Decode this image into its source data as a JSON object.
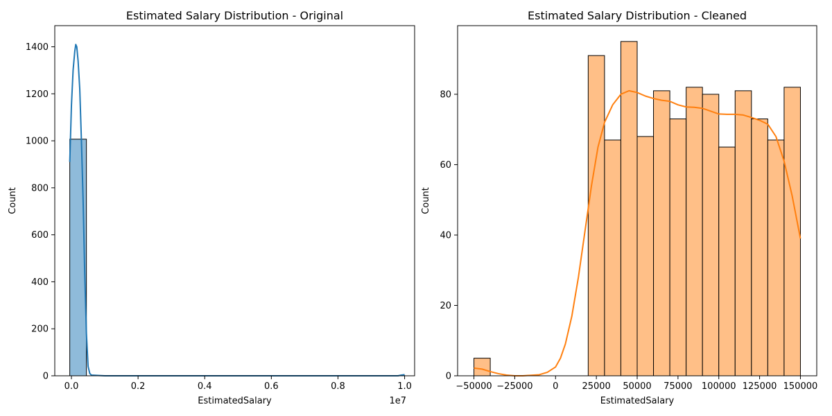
{
  "chart_data": [
    {
      "type": "bar",
      "title": "Estimated Salary Distribution - Original",
      "xlabel": "EstimatedSalary",
      "ylabel": "Count",
      "x_offset_label": "1e7",
      "xlim": [
        -0.05,
        1.03
      ],
      "ylim": [
        0,
        1490
      ],
      "xticks": [
        0.0,
        0.2,
        0.4,
        0.6,
        0.8,
        1.0
      ],
      "xtick_labels": [
        "0.0",
        "0.2",
        "0.4",
        "0.6",
        "0.8",
        "1.0"
      ],
      "yticks": [
        0,
        200,
        400,
        600,
        800,
        1000,
        1200,
        1400
      ],
      "ytick_labels": [
        "0",
        "200",
        "400",
        "600",
        "800",
        "1000",
        "1200",
        "1400"
      ],
      "grid": false,
      "color": "#1f77b4",
      "bins": [
        {
          "x0": -0.005,
          "x1": 0.045,
          "count": 1007
        },
        {
          "x0": 0.045,
          "x1": 0.995,
          "count": 0
        },
        {
          "x0": 0.995,
          "x1": 1.0,
          "count": 1
        }
      ],
      "kde": [
        [
          -0.005,
          910
        ],
        [
          0.0,
          1150
        ],
        [
          0.005,
          1300
        ],
        [
          0.01,
          1380
        ],
        [
          0.013,
          1410
        ],
        [
          0.016,
          1400
        ],
        [
          0.02,
          1340
        ],
        [
          0.025,
          1220
        ],
        [
          0.03,
          1000
        ],
        [
          0.035,
          750
        ],
        [
          0.04,
          430
        ],
        [
          0.045,
          180
        ],
        [
          0.05,
          40
        ],
        [
          0.055,
          10
        ],
        [
          0.06,
          3
        ],
        [
          0.1,
          0
        ],
        [
          0.5,
          0
        ],
        [
          0.98,
          0
        ],
        [
          0.99,
          3
        ],
        [
          1.0,
          5
        ]
      ]
    },
    {
      "type": "bar",
      "title": "Estimated Salary Distribution - Cleaned",
      "xlabel": "EstimatedSalary",
      "ylabel": "Count",
      "xlim": [
        -60000,
        160000
      ],
      "ylim": [
        0,
        99.5
      ],
      "xticks": [
        -50000,
        -25000,
        0,
        25000,
        50000,
        75000,
        100000,
        125000,
        150000
      ],
      "xtick_labels": [
        "−50000",
        "−25000",
        "0",
        "25000",
        "50000",
        "75000",
        "100000",
        "125000",
        "150000"
      ],
      "yticks": [
        0,
        20,
        40,
        60,
        80
      ],
      "ytick_labels": [
        "0",
        "20",
        "40",
        "60",
        "80"
      ],
      "grid": false,
      "color": "#ff7f0e",
      "bins": [
        {
          "x0": -50000,
          "x1": -40000,
          "count": 5
        },
        {
          "x0": -40000,
          "x1": -30000,
          "count": 0
        },
        {
          "x0": -30000,
          "x1": -20000,
          "count": 0
        },
        {
          "x0": -20000,
          "x1": -10000,
          "count": 0
        },
        {
          "x0": -10000,
          "x1": 0,
          "count": 0
        },
        {
          "x0": 0,
          "x1": 10000,
          "count": 0
        },
        {
          "x0": 10000,
          "x1": 20000,
          "count": 0
        },
        {
          "x0": 20000,
          "x1": 30000,
          "count": 91
        },
        {
          "x0": 30000,
          "x1": 40000,
          "count": 67
        },
        {
          "x0": 40000,
          "x1": 50000,
          "count": 95
        },
        {
          "x0": 50000,
          "x1": 60000,
          "count": 68
        },
        {
          "x0": 60000,
          "x1": 70000,
          "count": 81
        },
        {
          "x0": 70000,
          "x1": 80000,
          "count": 73
        },
        {
          "x0": 80000,
          "x1": 90000,
          "count": 82
        },
        {
          "x0": 90000,
          "x1": 100000,
          "count": 80
        },
        {
          "x0": 100000,
          "x1": 110000,
          "count": 65
        },
        {
          "x0": 110000,
          "x1": 120000,
          "count": 81
        },
        {
          "x0": 120000,
          "x1": 130000,
          "count": 73
        },
        {
          "x0": 130000,
          "x1": 140000,
          "count": 67
        },
        {
          "x0": 140000,
          "x1": 150000,
          "count": 82
        }
      ],
      "kde": [
        [
          -50000,
          2.2
        ],
        [
          -45000,
          1.9
        ],
        [
          -40000,
          1.2
        ],
        [
          -35000,
          0.6
        ],
        [
          -30000,
          0.2
        ],
        [
          -25000,
          0.0
        ],
        [
          -20000,
          0.0
        ],
        [
          -10000,
          0.3
        ],
        [
          -5000,
          1.0
        ],
        [
          0,
          2.5
        ],
        [
          3000,
          5
        ],
        [
          6000,
          9
        ],
        [
          10000,
          17
        ],
        [
          14000,
          28
        ],
        [
          18000,
          41
        ],
        [
          22000,
          54
        ],
        [
          26000,
          65
        ],
        [
          30000,
          72
        ],
        [
          35000,
          77
        ],
        [
          40000,
          80
        ],
        [
          45000,
          81
        ],
        [
          50000,
          80.5
        ],
        [
          55000,
          79.5
        ],
        [
          60000,
          78.8
        ],
        [
          65000,
          78.3
        ],
        [
          70000,
          78
        ],
        [
          75000,
          77
        ],
        [
          80000,
          76.4
        ],
        [
          85000,
          76.3
        ],
        [
          90000,
          76
        ],
        [
          95000,
          75.2
        ],
        [
          100000,
          74.4
        ],
        [
          105000,
          74.3
        ],
        [
          110000,
          74.3
        ],
        [
          115000,
          74.1
        ],
        [
          120000,
          73.4
        ],
        [
          125000,
          72.6
        ],
        [
          130000,
          71.5
        ],
        [
          135000,
          68
        ],
        [
          140000,
          61
        ],
        [
          145000,
          51
        ],
        [
          150000,
          39
        ]
      ]
    }
  ]
}
